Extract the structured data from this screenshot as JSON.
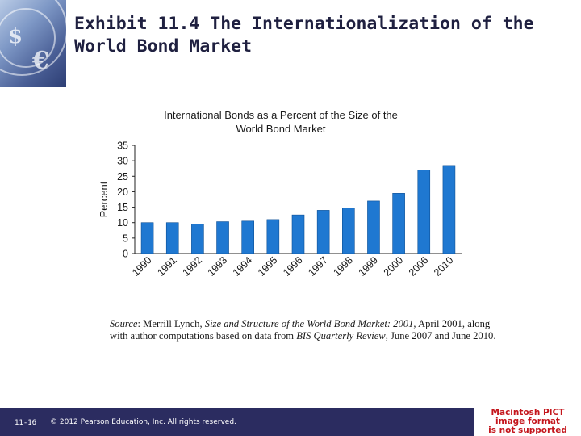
{
  "slide": {
    "title_lines": [
      "Exhibit 11.4  The Internationalization of the",
      "World Bond Market"
    ],
    "slide_number": "11-16",
    "copyright": "© 2012 Pearson Education, Inc. All rights reserved.",
    "pict_placeholder_lines": [
      "Macintosh PICT",
      "image format",
      "is not supported"
    ]
  },
  "source_note": {
    "label": "Source",
    "text_parts": [
      ": Merrill Lynch, ",
      "Size and Structure of the World Bond Market: 2001",
      ", April 2001, along with author computations based on data from ",
      "BIS Quarterly Review",
      ", June 2007 and June 2010."
    ]
  },
  "colors": {
    "bar": "#1f78d1",
    "bar_edge": "#0d4f95",
    "footer": "#2b2c60"
  },
  "chart_data": {
    "type": "bar",
    "title_lines": [
      "International Bonds as a Percent of the Size of the",
      "World Bond Market"
    ],
    "xlabel": "",
    "ylabel": "Percent",
    "categories": [
      "1990",
      "1991",
      "1992",
      "1993",
      "1994",
      "1995",
      "1996",
      "1997",
      "1998",
      "1999",
      "2000",
      "2006",
      "2010"
    ],
    "values": [
      10,
      10,
      9.5,
      10.3,
      10.5,
      11,
      12.5,
      14,
      14.7,
      17,
      19.5,
      27,
      28.5
    ],
    "ylim": [
      0,
      35
    ],
    "yticks": [
      0,
      5,
      10,
      15,
      20,
      25,
      30,
      35
    ],
    "grid": false,
    "legend": "none"
  }
}
